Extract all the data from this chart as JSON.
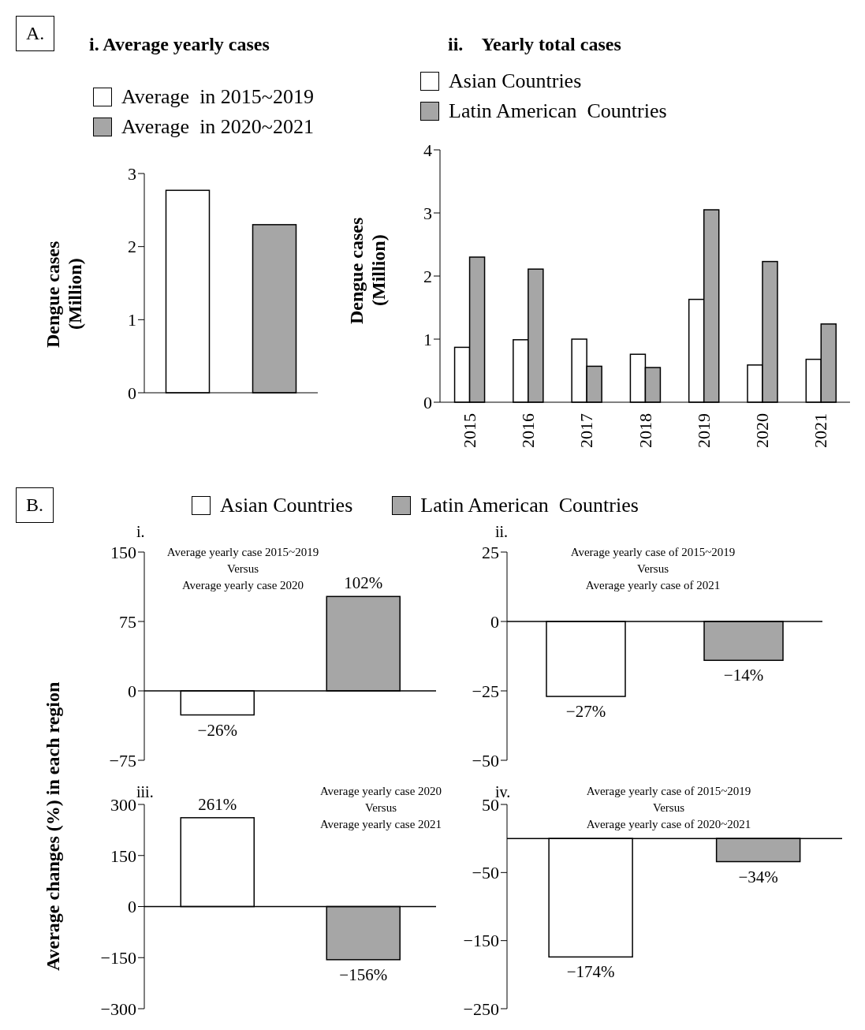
{
  "chart_data": [
    {
      "type": "bar",
      "title": "i. Average yearly cases",
      "ylabel": "Dengue cases (Million)",
      "annotations": [
        "A."
      ],
      "categories": [
        null,
        null
      ],
      "stacked": true,
      "legend": "top left",
      "tick_labels": "y",
      "ylim": [
        0,
        3
      ],
      "yticks": [
        0,
        1,
        2,
        3
      ],
      "series": [
        {
          "name": "Average  in 2015~2019",
          "color": "#ffffff",
          "values": [
            2.77,
            null
          ]
        },
        {
          "name": "Average  in 2020~2021",
          "color": "#a6a6a6",
          "values": [
            null,
            2.3
          ]
        }
      ]
    },
    {
      "type": "bar",
      "title": "ii.    Yearly total cases",
      "ylabel": "Dengue cases (Million)",
      "categories": [
        "2015",
        "2016",
        "2017",
        "2018",
        "2019",
        "2020",
        "2021"
      ],
      "legend": "top left",
      "ylim": [
        0,
        4
      ],
      "yticks": [
        0,
        1,
        2,
        3,
        4
      ],
      "series": [
        {
          "name": "Asian Countries",
          "color": "#ffffff",
          "values": [
            0.87,
            0.99,
            1.0,
            0.76,
            1.63,
            0.59,
            0.68
          ]
        },
        {
          "name": "Latin American  Countries",
          "color": "#a6a6a6",
          "values": [
            2.3,
            2.11,
            0.57,
            0.55,
            3.05,
            2.23,
            1.24
          ]
        }
      ]
    },
    {
      "type": "bar",
      "title": "i.",
      "ylabel": "Average  changes (%) in each region",
      "annotations": [
        "B.",
        "Average yearly case 2015~2019\nVersus\nAverage yearly case 2020"
      ],
      "categories": [
        null,
        null
      ],
      "stacked": true,
      "legend": "top",
      "tick_labels": "y",
      "ylim": [
        -75,
        150
      ],
      "yticks": [
        {
          "value": -75,
          "label": "−75"
        },
        0,
        75,
        150
      ],
      "series": [
        {
          "name": "Asian Countries",
          "color": "#ffffff",
          "values": [
            -26,
            null
          ],
          "value_labels": [
            "−26%",
            null
          ]
        },
        {
          "name": "Latin American  Countries",
          "color": "#a6a6a6",
          "values": [
            null,
            102
          ],
          "value_labels": [
            null,
            "102%"
          ]
        }
      ]
    },
    {
      "type": "bar",
      "title": "ii.",
      "annotations": [
        "Average yearly case of 2015~2019\nVersus\nAverage yearly case of 2021"
      ],
      "categories": [
        null,
        null
      ],
      "stacked": true,
      "tick_labels": "y",
      "ylim": [
        -50,
        25
      ],
      "yticks": [
        {
          "value": -50,
          "label": "−50"
        },
        {
          "value": -25,
          "label": "−25"
        },
        0,
        25
      ],
      "series": [
        {
          "color": "#ffffff",
          "values": [
            -27,
            null
          ],
          "value_labels": [
            "−27%",
            null
          ]
        },
        {
          "color": "#a6a6a6",
          "values": [
            null,
            -14
          ],
          "value_labels": [
            null,
            "−14%"
          ]
        }
      ]
    },
    {
      "type": "bar",
      "title": "iii.",
      "annotations": [
        "Average yearly case 2020\nVersus\nAverage yearly case 2021"
      ],
      "categories": [
        null,
        null
      ],
      "stacked": true,
      "tick_labels": "y",
      "ylim": [
        -300,
        300
      ],
      "yticks": [
        {
          "value": -300,
          "label": "−300"
        },
        {
          "value": -150,
          "label": "−150"
        },
        0,
        150,
        300
      ],
      "series": [
        {
          "color": "#ffffff",
          "values": [
            261,
            null
          ],
          "value_labels": [
            "261%",
            null
          ]
        },
        {
          "color": "#a6a6a6",
          "values": [
            null,
            -156
          ],
          "value_labels": [
            null,
            "−156%"
          ]
        }
      ]
    },
    {
      "type": "bar",
      "title": "iv.",
      "annotations": [
        "Average yearly case of 2015~2019\nVersus\nAverage yearly case of 2020~2021"
      ],
      "categories": [
        null,
        null
      ],
      "stacked": true,
      "tick_labels": "y",
      "ylim": [
        -250,
        50
      ],
      "yticks": [
        {
          "value": -250,
          "label": "−250"
        },
        {
          "value": -150,
          "label": "−150"
        },
        {
          "value": -50,
          "label": "−50"
        },
        50
      ],
      "series": [
        {
          "color": "#ffffff",
          "values": [
            -174,
            null
          ],
          "value_labels": [
            "−174%",
            null
          ]
        },
        {
          "color": "#a6a6a6",
          "values": [
            null,
            -34
          ],
          "value_labels": [
            null,
            "−34%"
          ]
        }
      ]
    }
  ]
}
